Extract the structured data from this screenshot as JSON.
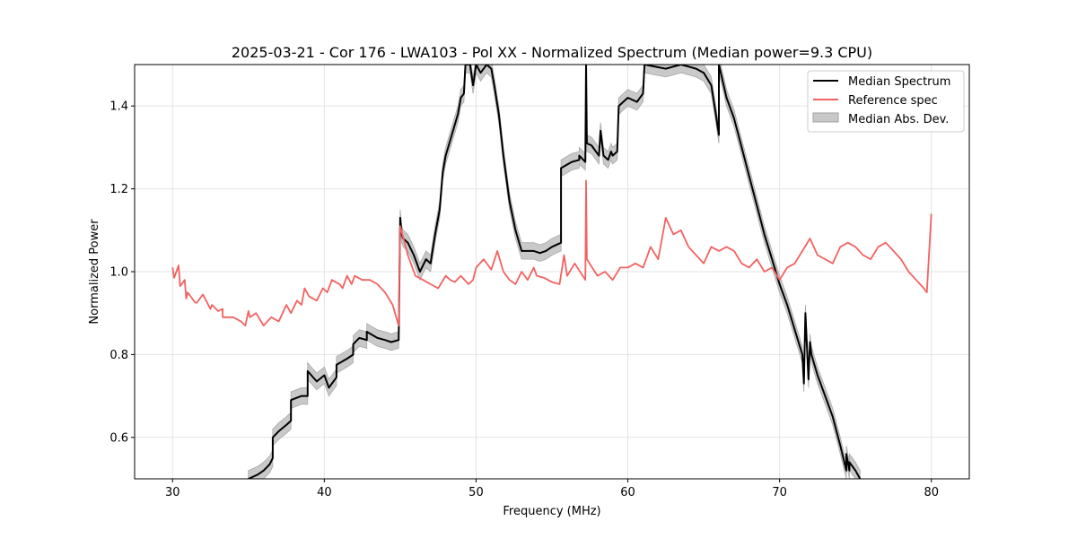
{
  "chart_data": {
    "type": "line",
    "title": "2025-03-21 - Cor 176 - LWA103 - Pol XX - Normalized Spectrum (Median power=9.3 CPU)",
    "xlabel": "Frequency (MHz)",
    "ylabel": "Normalized Power",
    "xlim": [
      27.5,
      82.5
    ],
    "ylim": [
      0.5,
      1.5
    ],
    "xticks": [
      30,
      40,
      50,
      60,
      70,
      80
    ],
    "yticks": [
      0.6,
      0.8,
      1.0,
      1.2,
      1.4
    ],
    "xtick_labels": [
      "30",
      "40",
      "50",
      "60",
      "70",
      "80"
    ],
    "ytick_labels": [
      "0.6",
      "0.8",
      "1.0",
      "1.2",
      "1.4"
    ],
    "grid": true,
    "legend_position": "top-right",
    "colors": {
      "median": "#000000",
      "reference": "#f26262",
      "band": "#c0c0c0"
    },
    "series": [
      {
        "name": "Median Spectrum",
        "x": [
          35.0,
          35.6,
          36.0,
          36.4,
          36.6,
          36.6,
          37.0,
          37.5,
          37.8,
          37.8,
          38.5,
          38.9,
          38.9,
          39.5,
          40.0,
          40.3,
          40.8,
          40.8,
          41.5,
          41.9,
          41.9,
          42.3,
          42.8,
          42.8,
          43.5,
          44.0,
          44.4,
          44.9,
          45.0,
          45.1,
          45.2,
          45.5,
          45.9,
          46.3,
          46.7,
          47.0,
          47.3,
          47.6,
          47.8,
          48.0,
          48.4,
          48.8,
          49.0,
          49.2,
          49.3,
          49.6,
          49.8,
          50.0,
          50.3,
          50.7,
          51.0,
          51.2,
          51.5,
          51.8,
          52.2,
          52.6,
          53.0,
          53.4,
          53.8,
          54.2,
          54.6,
          55.0,
          55.6,
          55.6,
          56.3,
          56.8,
          56.8,
          57.2,
          57.25,
          57.3,
          57.6,
          58.1,
          58.2,
          58.4,
          58.7,
          58.9,
          59.0,
          59.3,
          59.4,
          60.0,
          60.6,
          61.0,
          61.1,
          62.5,
          63.5,
          64.5,
          65.0,
          65.5,
          65.8,
          66.0,
          66.0,
          66.5,
          67.0,
          67.5,
          68.0,
          68.5,
          69.0,
          69.5,
          70.0,
          70.5,
          71.0,
          71.5,
          71.6,
          71.7,
          71.9,
          72.0,
          72.1,
          72.5,
          73.0,
          73.5,
          74.0,
          74.4,
          74.4,
          74.5,
          74.6,
          74.6,
          75.0,
          75.3
        ],
        "y": [
          0.5,
          0.51,
          0.52,
          0.535,
          0.55,
          0.6,
          0.615,
          0.63,
          0.64,
          0.69,
          0.7,
          0.7,
          0.76,
          0.735,
          0.75,
          0.72,
          0.745,
          0.775,
          0.79,
          0.8,
          0.825,
          0.84,
          0.835,
          0.855,
          0.84,
          0.835,
          0.83,
          0.835,
          1.13,
          1.09,
          1.08,
          1.07,
          1.04,
          1.0,
          1.03,
          1.02,
          1.09,
          1.15,
          1.24,
          1.28,
          1.33,
          1.38,
          1.42,
          1.43,
          1.5,
          1.5,
          1.45,
          1.5,
          1.48,
          1.5,
          1.49,
          1.45,
          1.38,
          1.28,
          1.17,
          1.1,
          1.05,
          1.05,
          1.05,
          1.045,
          1.05,
          1.06,
          1.07,
          1.25,
          1.265,
          1.27,
          1.28,
          1.265,
          1.5,
          1.31,
          1.305,
          1.28,
          1.34,
          1.28,
          1.27,
          1.29,
          1.28,
          1.29,
          1.4,
          1.42,
          1.41,
          1.43,
          1.5,
          1.49,
          1.5,
          1.49,
          1.48,
          1.45,
          1.38,
          1.33,
          1.5,
          1.42,
          1.37,
          1.3,
          1.23,
          1.16,
          1.09,
          1.03,
          0.97,
          0.92,
          0.86,
          0.8,
          0.73,
          0.9,
          0.74,
          0.83,
          0.8,
          0.75,
          0.7,
          0.65,
          0.58,
          0.52,
          0.56,
          0.54,
          0.52,
          0.54,
          0.52,
          0.5
        ]
      },
      {
        "name": "Reference spec",
        "x": [
          30.0,
          30.1,
          30.4,
          30.5,
          30.8,
          30.9,
          31.0,
          31.5,
          31.6,
          32.0,
          32.5,
          32.6,
          33.0,
          33.3,
          33.3,
          34.0,
          34.5,
          34.8,
          35.0,
          35.1,
          35.5,
          36.0,
          36.5,
          37.0,
          37.5,
          37.8,
          38.2,
          38.5,
          38.7,
          39.0,
          39.5,
          39.9,
          40.2,
          40.5,
          41.0,
          41.2,
          41.5,
          41.8,
          42.0,
          42.5,
          43.0,
          43.5,
          44.0,
          44.5,
          44.9,
          45.0,
          45.5,
          46.0,
          46.5,
          47.0,
          47.5,
          48.0,
          48.3,
          48.6,
          49.0,
          49.5,
          49.8,
          50.0,
          50.5,
          51.0,
          51.4,
          51.8,
          52.2,
          52.6,
          53.0,
          53.4,
          53.8,
          54.0,
          54.5,
          55.0,
          55.5,
          55.8,
          56.0,
          56.5,
          57.2,
          57.25,
          57.3,
          58.0,
          58.5,
          59.0,
          59.5,
          60.0,
          60.5,
          61.0,
          61.5,
          62.0,
          62.5,
          63.0,
          63.5,
          64.0,
          64.5,
          65.0,
          65.5,
          66.0,
          66.5,
          67.0,
          67.5,
          68.0,
          68.5,
          69.0,
          69.5,
          70.0,
          70.5,
          71.0,
          71.5,
          72.0,
          72.5,
          73.0,
          73.5,
          74.0,
          74.5,
          75.0,
          75.5,
          76.0,
          76.5,
          77.0,
          77.5,
          78.0,
          78.5,
          79.0,
          79.5,
          79.7,
          80.0
        ],
        "y": [
          1.01,
          0.985,
          1.015,
          0.965,
          0.98,
          0.935,
          0.95,
          0.925,
          0.925,
          0.945,
          0.91,
          0.92,
          0.905,
          0.91,
          0.89,
          0.89,
          0.88,
          0.87,
          0.905,
          0.89,
          0.9,
          0.87,
          0.89,
          0.88,
          0.92,
          0.9,
          0.93,
          0.92,
          0.96,
          0.94,
          0.93,
          0.96,
          0.95,
          0.98,
          0.97,
          0.96,
          0.99,
          0.97,
          0.99,
          0.98,
          0.98,
          0.97,
          0.95,
          0.92,
          0.87,
          1.11,
          1.04,
          0.99,
          0.98,
          0.97,
          0.96,
          0.99,
          0.98,
          0.975,
          0.99,
          0.97,
          0.98,
          1.01,
          1.03,
          1.005,
          1.05,
          1.0,
          0.98,
          0.97,
          1.0,
          0.98,
          1.01,
          0.99,
          0.985,
          0.975,
          0.97,
          1.04,
          0.99,
          1.02,
          0.98,
          1.22,
          1.03,
          0.99,
          1.0,
          0.98,
          1.01,
          1.01,
          1.02,
          1.01,
          1.06,
          1.03,
          1.13,
          1.09,
          1.1,
          1.06,
          1.04,
          1.02,
          1.06,
          1.05,
          1.06,
          1.05,
          1.02,
          1.01,
          1.03,
          1.0,
          1.01,
          0.98,
          1.01,
          1.02,
          1.05,
          1.08,
          1.04,
          1.03,
          1.02,
          1.06,
          1.07,
          1.06,
          1.04,
          1.03,
          1.06,
          1.07,
          1.05,
          1.03,
          1.0,
          0.98,
          0.96,
          0.95,
          1.14
        ],
        "visible_x_range": [
          30,
          80
        ]
      },
      {
        "name": "Median Abs. Dev.",
        "kind": "band_around_median",
        "half_width": 0.02
      }
    ]
  }
}
